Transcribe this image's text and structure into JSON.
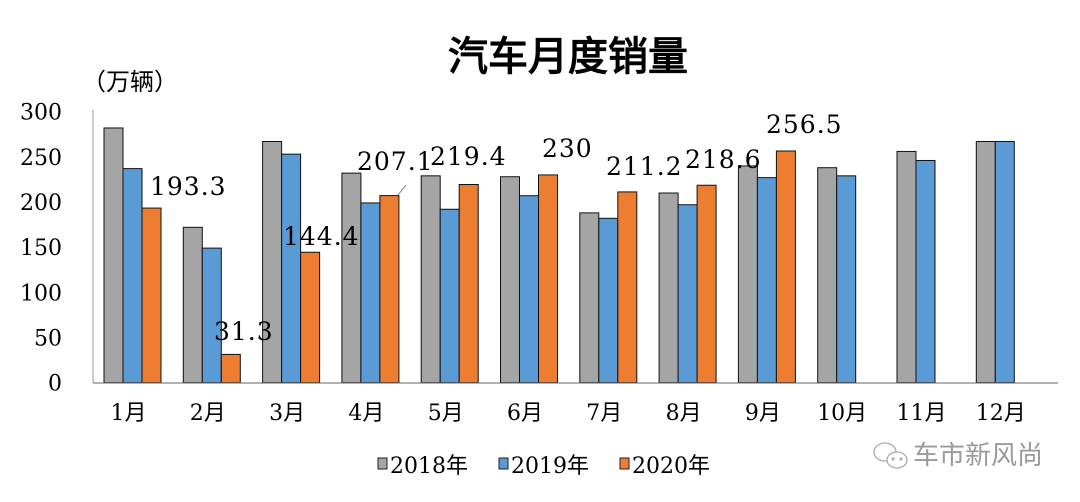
{
  "chart_data": {
    "type": "bar",
    "title": "汽车月度销量",
    "ylabel": "（万辆）",
    "xlabel": "",
    "ylim": [
      0,
      300
    ],
    "yticks": [
      "0",
      "50",
      "100",
      "150",
      "200",
      "250",
      "300"
    ],
    "grid": false,
    "legend_position": "bottom",
    "categories": [
      "1月",
      "2月",
      "3月",
      "4月",
      "5月",
      "6月",
      "7月",
      "8月",
      "9月",
      "10月",
      "11月",
      "12月"
    ],
    "series": [
      {
        "name": "2018年",
        "color": "#a5a5a5",
        "values": [
          282,
          172,
          267,
          232,
          229,
          228,
          188,
          210,
          240,
          238,
          256,
          267
        ]
      },
      {
        "name": "2019年",
        "color": "#5b9bd5",
        "values": [
          237,
          149,
          253,
          199,
          192,
          207,
          182,
          197,
          227,
          229,
          246,
          267
        ]
      },
      {
        "name": "2020年",
        "color": "#ed7d31",
        "values": [
          193.3,
          31.3,
          144.4,
          207.1,
          219.4,
          230,
          211.2,
          218.6,
          256.5,
          null,
          null,
          null
        ]
      }
    ],
    "data_labels": [
      "193.3",
      "31.3",
      "144.4",
      "207.1",
      "219.4",
      "230",
      "211.2",
      "218.6",
      "256.5"
    ]
  },
  "watermark": {
    "text": "车市新风尚",
    "icon": "wechat-icon"
  }
}
